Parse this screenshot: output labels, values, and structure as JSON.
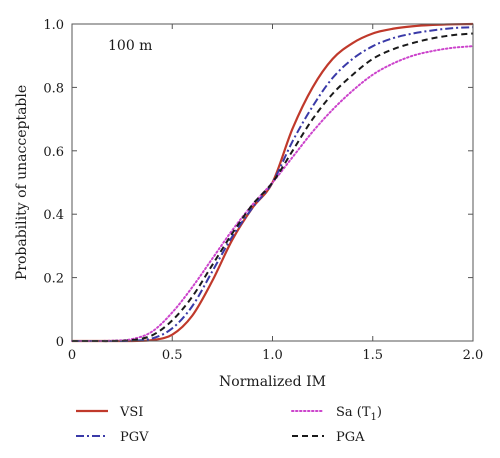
{
  "chart_data": {
    "type": "line",
    "title": "",
    "annotation": "100 m",
    "xlabel": "Normalized IM",
    "ylabel": "Probability of unacceptable",
    "xlim": [
      0,
      2.0
    ],
    "ylim": [
      0,
      1.0
    ],
    "x_ticks": [
      {
        "value": 0,
        "label": "0"
      },
      {
        "value": 0.5,
        "label": "0.5"
      },
      {
        "value": 1.0,
        "label": "1.0"
      },
      {
        "value": 1.5,
        "label": "1.5"
      },
      {
        "value": 2.0,
        "label": "2.0"
      }
    ],
    "y_ticks": [
      {
        "value": 0,
        "label": "0"
      },
      {
        "value": 0.2,
        "label": "0.2"
      },
      {
        "value": 0.4,
        "label": "0.4"
      },
      {
        "value": 0.6,
        "label": "0.6"
      },
      {
        "value": 0.8,
        "label": "0.8"
      },
      {
        "value": 1.0,
        "label": "1.0"
      }
    ],
    "grid": false,
    "legend_position": "bottom",
    "x": [
      0,
      0.1,
      0.2,
      0.3,
      0.4,
      0.5,
      0.6,
      0.7,
      0.8,
      0.9,
      1.0,
      1.1,
      1.2,
      1.3,
      1.4,
      1.5,
      1.6,
      1.7,
      1.8,
      1.9,
      2.0
    ],
    "series": [
      {
        "name": "VSI",
        "color": "#c0392b",
        "dash": "solid",
        "values": [
          0,
          0,
          0,
          0,
          0.003,
          0.02,
          0.08,
          0.19,
          0.32,
          0.42,
          0.5,
          0.67,
          0.8,
          0.89,
          0.94,
          0.97,
          0.985,
          0.993,
          0.997,
          0.999,
          1.0
        ]
      },
      {
        "name": "PGV",
        "color": "#3a3aa8",
        "dash": "dashdot",
        "values": [
          0,
          0,
          0,
          0.001,
          0.008,
          0.04,
          0.11,
          0.22,
          0.33,
          0.42,
          0.5,
          0.63,
          0.74,
          0.83,
          0.89,
          0.93,
          0.955,
          0.97,
          0.98,
          0.987,
          0.99
        ]
      },
      {
        "name": "Sa (T",
        "subscript": "1",
        "suffix": ")",
        "color": "#cc44cc",
        "dash": "dotted",
        "values": [
          0,
          0,
          0.001,
          0.006,
          0.03,
          0.09,
          0.17,
          0.26,
          0.35,
          0.43,
          0.5,
          0.58,
          0.66,
          0.73,
          0.79,
          0.84,
          0.875,
          0.9,
          0.915,
          0.925,
          0.93
        ]
      },
      {
        "name": "PGA",
        "color": "#1a1a1a",
        "dash": "dashed",
        "values": [
          0,
          0,
          0,
          0.003,
          0.018,
          0.065,
          0.14,
          0.24,
          0.34,
          0.43,
          0.5,
          0.6,
          0.7,
          0.78,
          0.84,
          0.89,
          0.92,
          0.94,
          0.955,
          0.965,
          0.97
        ]
      }
    ]
  }
}
